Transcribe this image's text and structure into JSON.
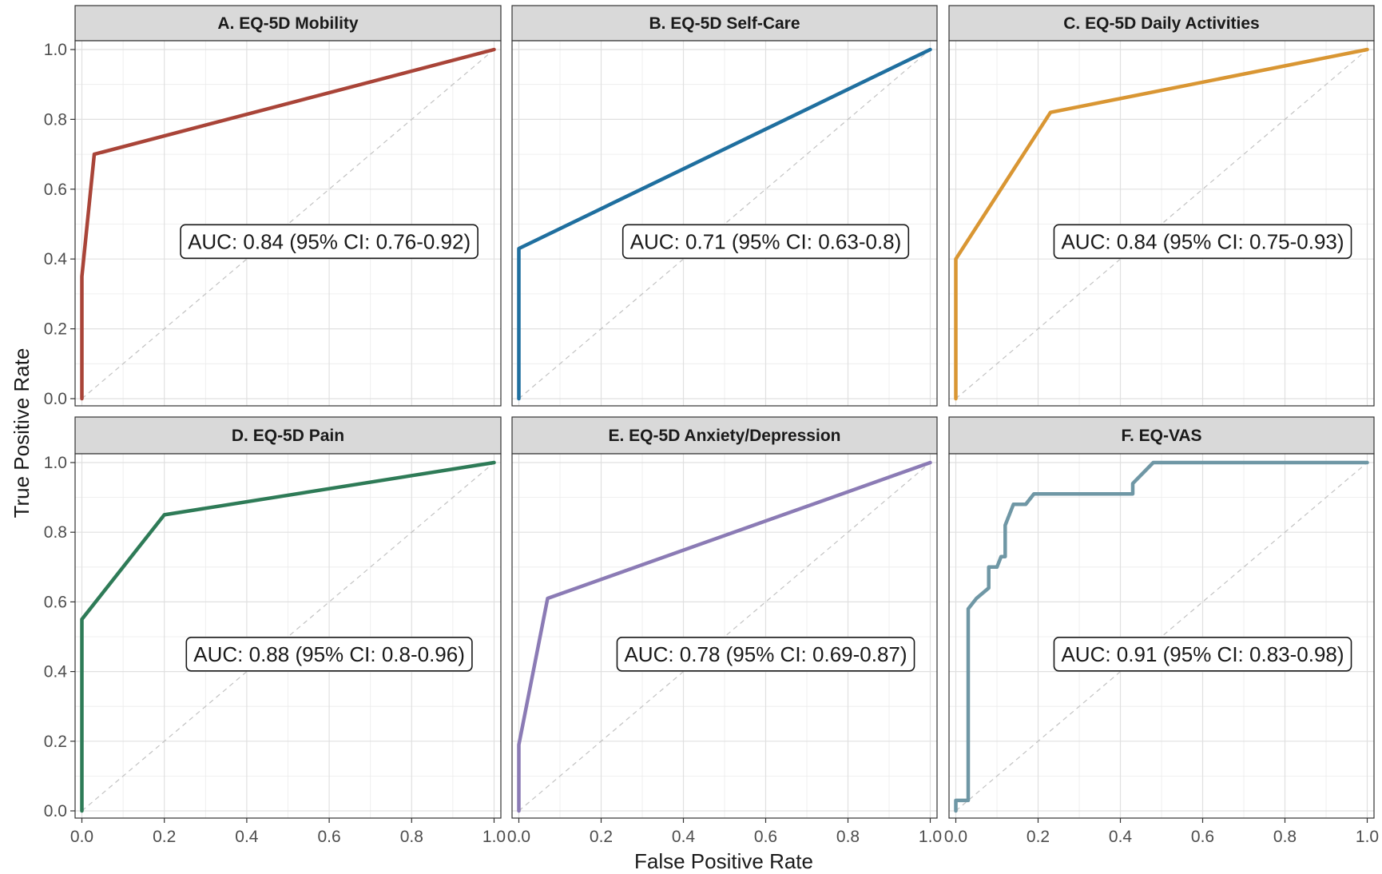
{
  "chart_data": {
    "type": "line",
    "xlabel": "False Positive Rate",
    "ylabel": "True Positive Rate",
    "xlim": [
      0,
      1
    ],
    "ylim": [
      0,
      1
    ],
    "ticks": [
      0.0,
      0.2,
      0.4,
      0.6,
      0.8,
      1.0
    ],
    "tick_labels": [
      "0.0",
      "0.2",
      "0.4",
      "0.6",
      "0.8",
      "1.0"
    ],
    "grid": true,
    "reference_line": "diagonal dashed",
    "panels": [
      {
        "title": "A. EQ-5D Mobility",
        "color": "#A94438",
        "auc_label": "AUC: 0.84 (95% CI: 0.76-0.92)",
        "x": [
          0,
          0,
          0.03,
          1
        ],
        "y": [
          0,
          0.35,
          0.7,
          1
        ]
      },
      {
        "title": "B. EQ-5D Self-Care",
        "color": "#1F6F9F",
        "auc_label": "AUC: 0.71 (95% CI: 0.63-0.8)",
        "x": [
          0,
          0,
          1
        ],
        "y": [
          0,
          0.43,
          1
        ]
      },
      {
        "title": "C. EQ-5D Daily Activities",
        "color": "#D99633",
        "auc_label": "AUC: 0.84 (95% CI: 0.75-0.93)",
        "x": [
          0,
          0,
          0.23,
          1
        ],
        "y": [
          0,
          0.4,
          0.82,
          1
        ]
      },
      {
        "title": "D. EQ-5D Pain",
        "color": "#2E7B57",
        "auc_label": "AUC: 0.88 (95% CI: 0.8-0.96)",
        "x": [
          0,
          0,
          0.2,
          1
        ],
        "y": [
          0,
          0.55,
          0.85,
          1
        ]
      },
      {
        "title": "E. EQ-5D Anxiety/Depression",
        "color": "#8B7BB5",
        "auc_label": "AUC: 0.78 (95% CI: 0.69-0.87)",
        "x": [
          0,
          0,
          0.07,
          1
        ],
        "y": [
          0,
          0.19,
          0.61,
          1
        ]
      },
      {
        "title": "F. EQ-VAS",
        "color": "#6F97A5",
        "auc_label": "AUC: 0.91 (95% CI: 0.83-0.98)",
        "x": [
          0,
          0,
          0.03,
          0.03,
          0.05,
          0.08,
          0.08,
          0.1,
          0.11,
          0.12,
          0.12,
          0.14,
          0.17,
          0.19,
          0.19,
          0.43,
          0.43,
          0.48,
          1
        ],
        "y": [
          0,
          0.03,
          0.03,
          0.58,
          0.61,
          0.64,
          0.7,
          0.7,
          0.73,
          0.73,
          0.82,
          0.88,
          0.88,
          0.91,
          0.91,
          0.91,
          0.94,
          1,
          1
        ]
      }
    ]
  }
}
